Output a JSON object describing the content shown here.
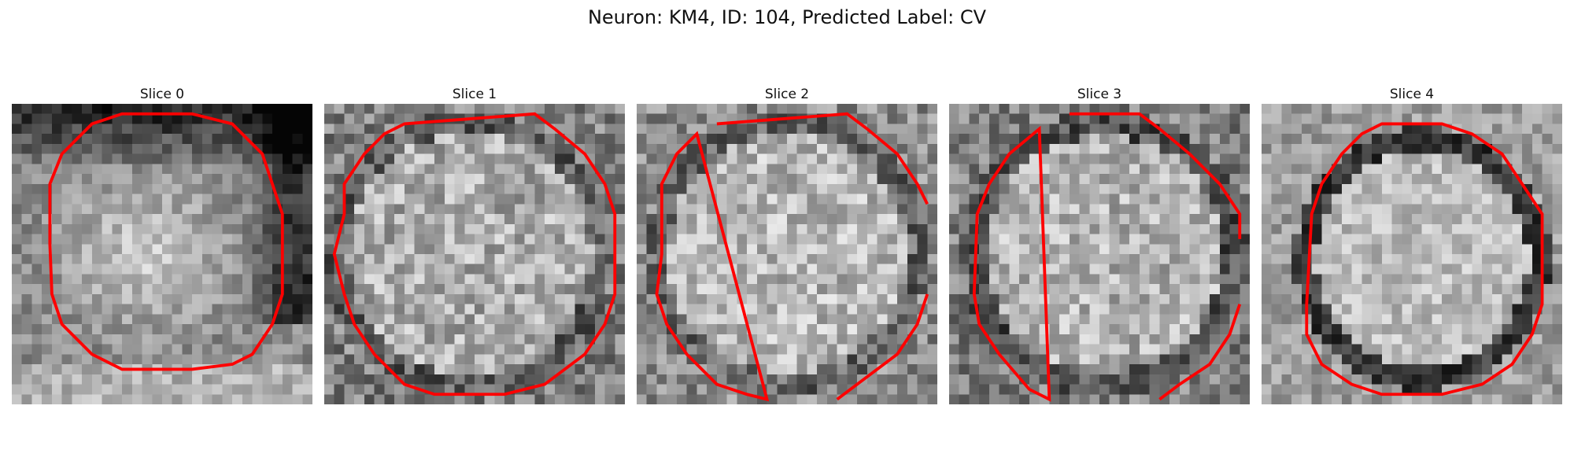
{
  "figure": {
    "title": "Neuron: KM4, ID: 104, Predicted Label: CV",
    "background": "#ffffff",
    "contour_color": "#ff0000"
  },
  "slices": [
    {
      "title": "Slice 0"
    },
    {
      "title": "Slice 1"
    },
    {
      "title": "Slice 2"
    },
    {
      "title": "Slice 3"
    },
    {
      "title": "Slice 4"
    }
  ]
}
